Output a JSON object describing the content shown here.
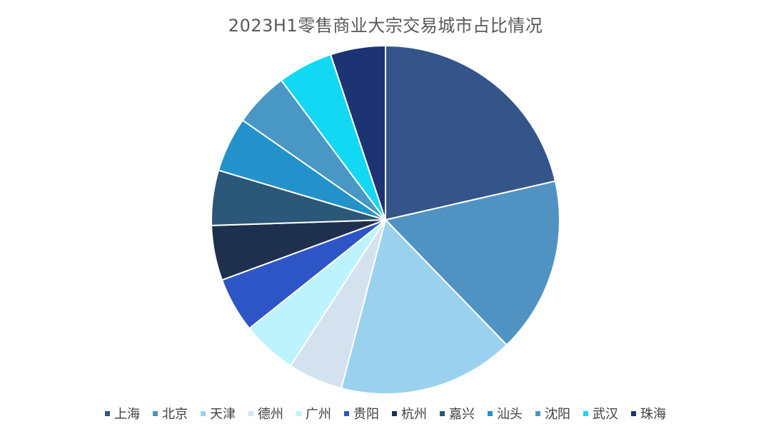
{
  "chart_data": {
    "type": "pie",
    "title": "2023H1零售商业大宗交易城市占比情况",
    "legend_position": "bottom",
    "categories": [
      "上海",
      "北京",
      "天津",
      "德州",
      "广州",
      "贵阳",
      "杭州",
      "嘉兴",
      "汕头",
      "沈阳",
      "武汉",
      "珠海"
    ],
    "values": [
      21,
      16,
      16,
      5,
      5,
      5,
      5,
      5,
      5,
      5,
      5,
      5
    ],
    "colors": [
      "#34548A",
      "#5093C3",
      "#99D1EF",
      "#D3E2EE",
      "#BDF3FC",
      "#2D55C5",
      "#1F2F4E",
      "#2B5778",
      "#2392CB",
      "#4897C5",
      "#13D8F3",
      "#1D3374"
    ]
  }
}
